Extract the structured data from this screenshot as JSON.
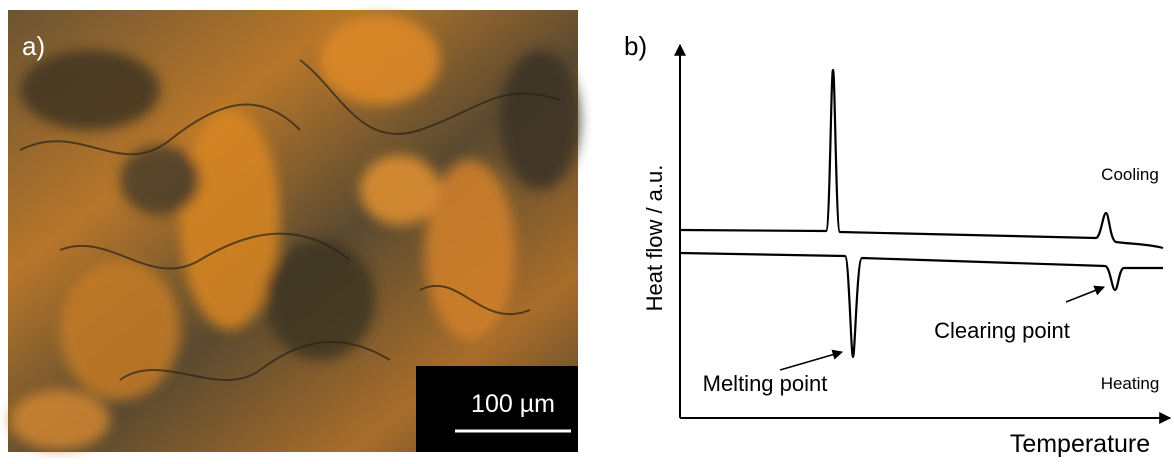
{
  "panel_a": {
    "label": "a)",
    "scale_bar": "100 µm"
  },
  "panel_b": {
    "label": "b)",
    "y_axis_label": "Heat flow / a.u.",
    "x_axis_label": "Temperature",
    "curves": [
      "Cooling",
      "Heating"
    ],
    "annotations": [
      "Melting point",
      "Clearing point"
    ]
  }
}
